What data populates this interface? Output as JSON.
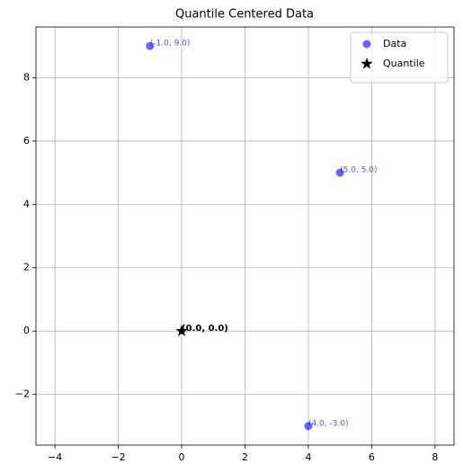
{
  "chart_data": {
    "type": "scatter",
    "title": "Quantile Centered Data",
    "series": [
      {
        "name": "Data",
        "color": "#0000ff",
        "alpha": 0.6,
        "marker": "circle",
        "x": [
          -1.0,
          5.0,
          4.0
        ],
        "values": [
          9.0,
          5.0,
          -3.0
        ],
        "point_labels": [
          "(-1.0, 9.0)",
          "(5.0, 5.0)",
          "(4.0, -3.0)"
        ]
      },
      {
        "name": "Quantile",
        "color": "#000000",
        "alpha": 1,
        "marker": "star",
        "x": [
          0.0
        ],
        "values": [
          0.0
        ],
        "point_labels": [
          "(0.0, 0.0)"
        ]
      }
    ],
    "xlim": [
      -4.6,
      8.6
    ],
    "ylim": [
      -3.6,
      9.6
    ],
    "xticks": [
      {
        "value": -4,
        "label": "−4"
      },
      {
        "value": -2,
        "label": "−2"
      },
      0,
      2,
      4,
      6,
      8
    ],
    "yticks": [
      {
        "value": -2,
        "label": "−2"
      },
      0,
      2,
      4,
      6,
      8
    ],
    "grid": true,
    "legend": "upper right"
  }
}
